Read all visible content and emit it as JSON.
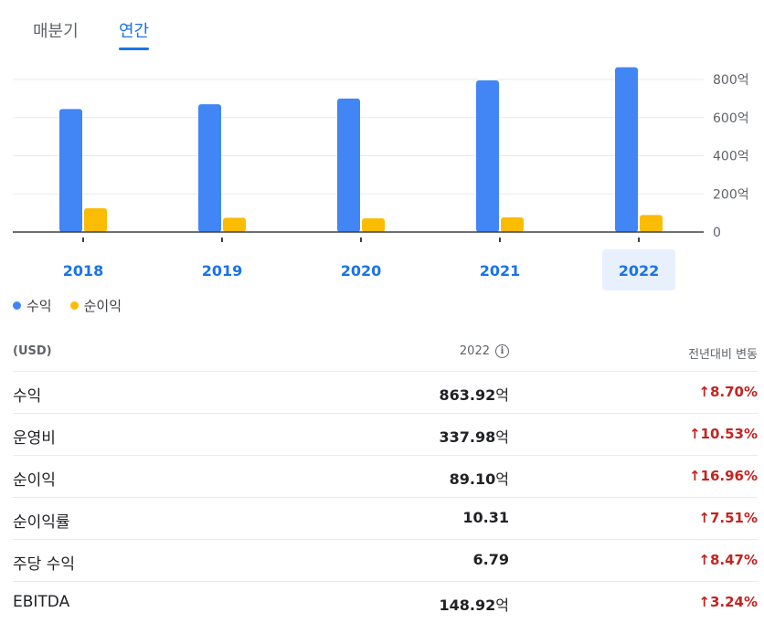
{
  "tabs": [
    {
      "label": "매분기",
      "active": false
    },
    {
      "label": "연간",
      "active": true
    }
  ],
  "colors": {
    "revenue": "#4285f4",
    "net_income": "#fbbc04",
    "accent": "#1a73e8",
    "negative_or_up": "#c5221f"
  },
  "chart_data": {
    "type": "bar",
    "categories": [
      "2018",
      "2019",
      "2020",
      "2021",
      "2022"
    ],
    "series": [
      {
        "name": "수익",
        "values": [
          645,
          670,
          700,
          795,
          863.92
        ]
      },
      {
        "name": "순이익",
        "values": [
          125,
          75,
          72,
          77,
          89.1
        ]
      }
    ],
    "ylim": [
      0,
      800
    ],
    "yticks": [
      0,
      200,
      400,
      600,
      800
    ],
    "ytick_labels": [
      "0",
      "200억",
      "400억",
      "600억",
      "800억"
    ],
    "y_axis_position": "right",
    "grid": true,
    "selected_category": "2022",
    "legend_position": "bottom-left"
  },
  "legend": [
    {
      "label": "수익",
      "icon": "blue-dot-icon"
    },
    {
      "label": "순이익",
      "icon": "yellow-dot-icon"
    }
  ],
  "table": {
    "header": {
      "label": "(USD)",
      "year": "2022",
      "change": "전년대비 변동",
      "info_icon": "info-icon"
    },
    "rows": [
      {
        "name": "수익",
        "value": "863.92",
        "unit": "억",
        "change": "8.70%"
      },
      {
        "name": "운영비",
        "value": "337.98",
        "unit": "억",
        "change": "10.53%"
      },
      {
        "name": "순이익",
        "value": "89.10",
        "unit": "억",
        "change": "16.96%"
      },
      {
        "name": "순이익률",
        "value": "10.31",
        "unit": "",
        "change": "7.51%"
      },
      {
        "name": "주당 수익",
        "value": "6.79",
        "unit": "",
        "change": "8.47%"
      },
      {
        "name": "EBITDA",
        "value": "148.92",
        "unit": "억",
        "change": "3.24%"
      }
    ]
  }
}
